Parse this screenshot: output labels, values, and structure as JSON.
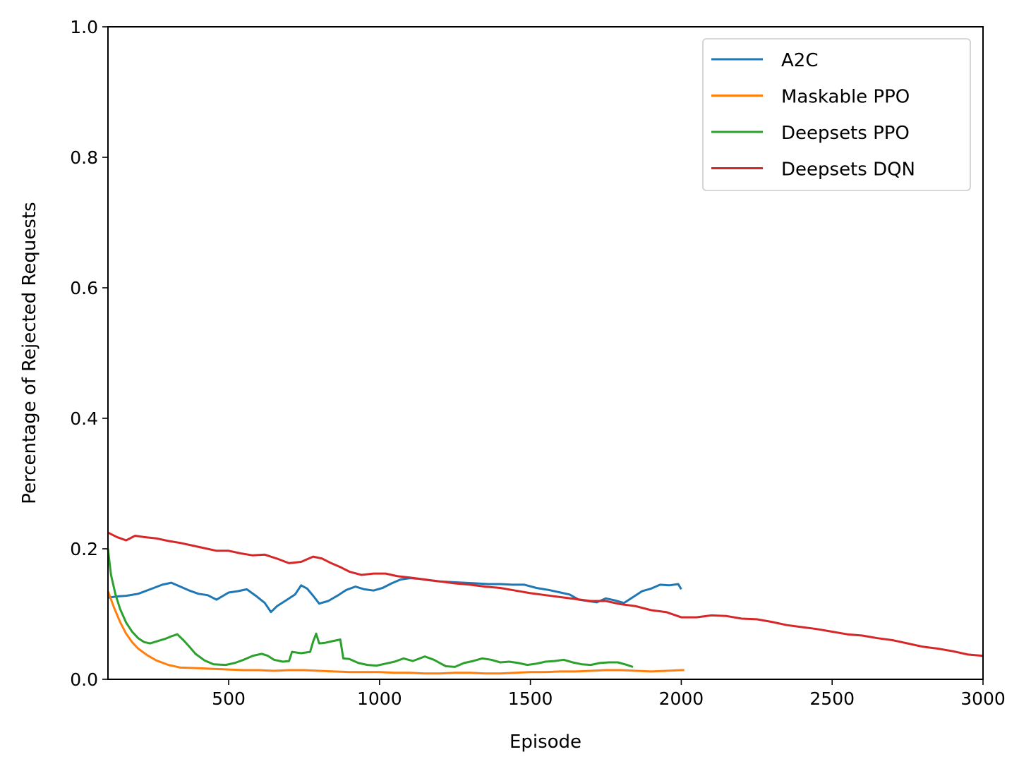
{
  "chart_data": {
    "type": "line",
    "xlabel": "Episode",
    "ylabel": "Percentage of Rejected Requests",
    "xlim": [
      100,
      3000
    ],
    "ylim": [
      0.0,
      1.0
    ],
    "xticks": [
      500,
      1000,
      1500,
      2000,
      2500,
      3000
    ],
    "xtick_labels": [
      "500",
      "1000",
      "1500",
      "2000",
      "2500",
      "3000"
    ],
    "yticks": [
      0.0,
      0.2,
      0.4,
      0.6,
      0.8,
      1.0
    ],
    "ytick_labels": [
      "0.0",
      "0.2",
      "0.4",
      "0.6",
      "0.8",
      "1.0"
    ],
    "grid": false,
    "legend_position": "top-right",
    "series": [
      {
        "name": "A2C",
        "color": "#1f77b4",
        "x": [
          100,
          130,
          160,
          200,
          240,
          280,
          310,
          340,
          370,
          400,
          430,
          460,
          500,
          530,
          560,
          590,
          620,
          640,
          660,
          690,
          720,
          740,
          760,
          780,
          800,
          830,
          860,
          890,
          920,
          950,
          980,
          1010,
          1040,
          1070,
          1100,
          1130,
          1160,
          1200,
          1240,
          1280,
          1320,
          1360,
          1400,
          1440,
          1480,
          1520,
          1560,
          1600,
          1630,
          1660,
          1690,
          1720,
          1750,
          1780,
          1810,
          1840,
          1870,
          1900,
          1930,
          1960,
          1990,
          2000
        ],
        "y": [
          0.125,
          0.127,
          0.128,
          0.131,
          0.138,
          0.145,
          0.148,
          0.142,
          0.136,
          0.131,
          0.129,
          0.122,
          0.133,
          0.135,
          0.138,
          0.128,
          0.117,
          0.103,
          0.112,
          0.121,
          0.13,
          0.144,
          0.139,
          0.128,
          0.116,
          0.12,
          0.128,
          0.137,
          0.142,
          0.138,
          0.136,
          0.14,
          0.147,
          0.153,
          0.155,
          0.154,
          0.152,
          0.15,
          0.149,
          0.148,
          0.147,
          0.146,
          0.146,
          0.145,
          0.145,
          0.14,
          0.137,
          0.133,
          0.13,
          0.122,
          0.12,
          0.118,
          0.124,
          0.121,
          0.117,
          0.126,
          0.135,
          0.139,
          0.145,
          0.144,
          0.146,
          0.138
        ]
      },
      {
        "name": "Maskable PPO",
        "color": "#ff7f0e",
        "x": [
          100,
          120,
          140,
          160,
          180,
          200,
          230,
          260,
          300,
          340,
          400,
          450,
          500,
          550,
          600,
          650,
          700,
          750,
          800,
          850,
          900,
          950,
          1000,
          1050,
          1100,
          1150,
          1200,
          1250,
          1300,
          1350,
          1400,
          1450,
          1500,
          1550,
          1600,
          1650,
          1700,
          1750,
          1800,
          1850,
          1900,
          1950,
          2000,
          2010
        ],
        "y": [
          0.135,
          0.11,
          0.088,
          0.07,
          0.057,
          0.047,
          0.037,
          0.029,
          0.022,
          0.018,
          0.017,
          0.016,
          0.015,
          0.014,
          0.014,
          0.013,
          0.014,
          0.014,
          0.013,
          0.012,
          0.011,
          0.011,
          0.011,
          0.01,
          0.01,
          0.009,
          0.009,
          0.01,
          0.01,
          0.009,
          0.009,
          0.01,
          0.011,
          0.011,
          0.012,
          0.012,
          0.013,
          0.014,
          0.014,
          0.013,
          0.012,
          0.013,
          0.014,
          0.014
        ]
      },
      {
        "name": "Deepsets PPO",
        "color": "#2ca02c",
        "x": [
          100,
          110,
          125,
          140,
          160,
          180,
          200,
          220,
          240,
          260,
          290,
          310,
          330,
          350,
          370,
          390,
          420,
          450,
          490,
          520,
          550,
          580,
          610,
          630,
          650,
          680,
          700,
          710,
          740,
          770,
          780,
          790,
          800,
          820,
          850,
          870,
          880,
          900,
          930,
          960,
          990,
          1020,
          1050,
          1080,
          1110,
          1150,
          1180,
          1200,
          1220,
          1250,
          1280,
          1310,
          1340,
          1370,
          1400,
          1430,
          1460,
          1490,
          1520,
          1550,
          1580,
          1610,
          1640,
          1670,
          1700,
          1730,
          1760,
          1790,
          1820,
          1840
        ],
        "y": [
          0.2,
          0.16,
          0.13,
          0.108,
          0.087,
          0.073,
          0.063,
          0.057,
          0.055,
          0.058,
          0.062,
          0.066,
          0.069,
          0.06,
          0.05,
          0.039,
          0.029,
          0.023,
          0.022,
          0.025,
          0.03,
          0.036,
          0.039,
          0.036,
          0.03,
          0.027,
          0.028,
          0.042,
          0.04,
          0.042,
          0.058,
          0.07,
          0.055,
          0.056,
          0.059,
          0.061,
          0.032,
          0.031,
          0.025,
          0.022,
          0.021,
          0.024,
          0.027,
          0.032,
          0.028,
          0.035,
          0.03,
          0.025,
          0.02,
          0.019,
          0.025,
          0.028,
          0.032,
          0.03,
          0.026,
          0.027,
          0.025,
          0.022,
          0.024,
          0.027,
          0.028,
          0.03,
          0.026,
          0.023,
          0.022,
          0.025,
          0.026,
          0.026,
          0.022,
          0.019
        ]
      },
      {
        "name": "Deepsets DQN",
        "color": "#d62728",
        "x": [
          100,
          130,
          160,
          190,
          220,
          260,
          300,
          340,
          380,
          420,
          460,
          500,
          540,
          580,
          620,
          660,
          700,
          740,
          780,
          810,
          840,
          870,
          900,
          940,
          980,
          1020,
          1060,
          1100,
          1150,
          1200,
          1250,
          1300,
          1350,
          1400,
          1450,
          1500,
          1550,
          1600,
          1650,
          1700,
          1750,
          1800,
          1850,
          1900,
          1950,
          2000,
          2050,
          2100,
          2150,
          2200,
          2250,
          2300,
          2350,
          2400,
          2450,
          2500,
          2550,
          2600,
          2650,
          2700,
          2750,
          2800,
          2850,
          2900,
          2950,
          3000
        ],
        "y": [
          0.225,
          0.218,
          0.213,
          0.22,
          0.218,
          0.216,
          0.212,
          0.209,
          0.205,
          0.201,
          0.197,
          0.197,
          0.193,
          0.19,
          0.191,
          0.185,
          0.178,
          0.18,
          0.188,
          0.185,
          0.178,
          0.172,
          0.165,
          0.16,
          0.162,
          0.162,
          0.158,
          0.156,
          0.153,
          0.15,
          0.147,
          0.145,
          0.142,
          0.14,
          0.136,
          0.132,
          0.129,
          0.126,
          0.123,
          0.12,
          0.12,
          0.115,
          0.112,
          0.106,
          0.103,
          0.095,
          0.095,
          0.098,
          0.097,
          0.093,
          0.092,
          0.088,
          0.083,
          0.08,
          0.077,
          0.073,
          0.069,
          0.067,
          0.063,
          0.06,
          0.055,
          0.05,
          0.047,
          0.043,
          0.038,
          0.036
        ]
      }
    ]
  }
}
